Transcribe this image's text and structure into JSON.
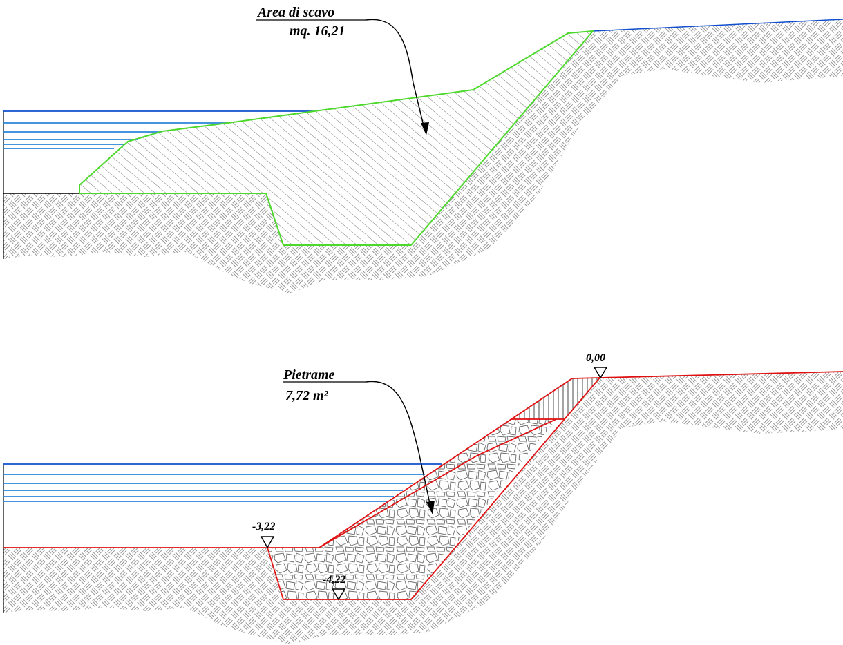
{
  "top_section": {
    "title": "Area di scavo",
    "value": "mq. 16,21"
  },
  "bottom_section": {
    "title": "Pietrame",
    "value": "7,72  m²",
    "elevations": {
      "top": "0,00",
      "left": "-3,22",
      "bottom": "-4,22"
    }
  },
  "colors": {
    "water": "#0f4fcf",
    "water_light": "#2a86d8",
    "excavation_outline": "#4cd92b",
    "fill_outline": "#e01010",
    "hatch": "#707070",
    "ink": "#000000"
  }
}
